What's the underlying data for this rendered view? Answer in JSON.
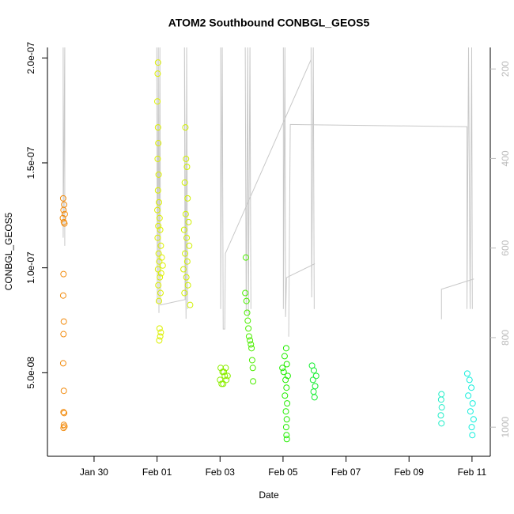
{
  "chart_data": {
    "type": "scatter",
    "title": "ATOM2 Southbound CONBGL_GEOS5",
    "xlabel": "Date",
    "ylabel": "CONBGL_GEOS5",
    "xlim": [
      28.52,
      42.58
    ],
    "xticks": [
      {
        "value": 30,
        "label": "Jan 30"
      },
      {
        "value": 32,
        "label": "Feb 01"
      },
      {
        "value": 34,
        "label": "Feb 03"
      },
      {
        "value": 36,
        "label": "Feb 05"
      },
      {
        "value": 38,
        "label": "Feb 07"
      },
      {
        "value": 40,
        "label": "Feb 09"
      },
      {
        "value": 42,
        "label": "Feb 11"
      }
    ],
    "ylim": [
      1.02e-08,
      2.05e-07
    ],
    "yticks": [
      {
        "value": 5e-08,
        "label": "5.0e-08"
      },
      {
        "value": 1e-07,
        "label": "1.0e-07"
      },
      {
        "value": 1.5e-07,
        "label": "1.5e-07"
      },
      {
        "value": 2e-07,
        "label": "2.0e-07"
      }
    ],
    "y2lim": [
      1065,
      152
    ],
    "y2ticks": [
      200,
      400,
      600,
      800,
      1000
    ],
    "y2color": "#bbbbbb",
    "series": [
      {
        "type": "scatter",
        "color": "#f28c0f",
        "x": [
          29.02,
          29.05,
          29.03,
          29.07,
          29.01,
          29.04,
          29.06,
          29.03,
          29.02,
          29.04,
          29.03,
          29.02,
          29.04,
          29.03,
          29.05,
          29.04,
          29.06,
          29.03
        ],
        "values": [
          1.331e-07,
          1.301e-07,
          1.275e-07,
          1.256e-07,
          1.237e-07,
          1.218e-07,
          1.211e-07,
          9.7e-08,
          8.68e-08,
          7.44e-08,
          6.84e-08,
          5.45e-08,
          4.14e-08,
          3.12e-08,
          3.08e-08,
          2.52e-08,
          2.44e-08,
          2.37e-08
        ]
      },
      {
        "type": "scatter",
        "color": "#dcf000",
        "x": [
          32.03,
          32.02,
          32.01,
          32.03,
          32.04,
          32.02,
          32.05,
          32.03,
          32.06,
          32.01,
          32.08,
          32.04,
          32.1,
          32.02,
          32.12,
          32.05,
          32.15,
          32.07,
          32.18,
          32.03,
          32.13,
          32.09,
          32.04,
          32.11,
          32.06,
          32.08,
          32.12,
          32.1,
          32.07
        ],
        "values": [
          1.978e-07,
          1.925e-07,
          1.793e-07,
          1.669e-07,
          1.594e-07,
          1.519e-07,
          1.444e-07,
          1.369e-07,
          1.312e-07,
          1.275e-07,
          1.237e-07,
          1.199e-07,
          1.181e-07,
          1.143e-07,
          1.105e-07,
          1.068e-07,
          1.049e-07,
          1.03e-07,
          1.011e-07,
          9.93e-08,
          9.74e-08,
          9.55e-08,
          9.17e-08,
          8.8e-08,
          8.42e-08,
          7.11e-08,
          6.92e-08,
          6.73e-08,
          6.54e-08
        ]
      },
      {
        "type": "scatter",
        "color": "#d0f000",
        "x": [
          32.9,
          32.92,
          32.95,
          32.88,
          32.97,
          32.91,
          33.0,
          32.86,
          32.94,
          33.02,
          32.89,
          32.96,
          32.84,
          32.93,
          32.98,
          32.87,
          33.05
        ],
        "values": [
          1.669e-07,
          1.519e-07,
          1.481e-07,
          1.406e-07,
          1.331e-07,
          1.256e-07,
          1.218e-07,
          1.181e-07,
          1.143e-07,
          1.105e-07,
          1.068e-07,
          1.03e-07,
          9.93e-08,
          9.55e-08,
          9.17e-08,
          8.8e-08,
          8.23e-08
        ]
      },
      {
        "type": "scatter",
        "color": "#8cee00",
        "x": [
          34.02,
          34.08,
          34.15,
          34.2,
          34.05,
          34.12,
          34.24,
          34.0,
          34.18,
          34.1
        ],
        "values": [
          5.23e-08,
          5.04e-08,
          4.85e-08,
          4.66e-08,
          4.47e-08,
          5.04e-08,
          4.85e-08,
          4.66e-08,
          5.23e-08,
          4.47e-08
        ]
      },
      {
        "type": "scatter",
        "color": "#4cee00",
        "x": [
          34.82,
          34.8,
          34.84,
          34.86,
          34.88,
          34.9,
          34.92,
          34.95,
          34.98,
          35.0,
          35.02,
          35.04,
          35.05
        ],
        "values": [
          1.049e-07,
          8.8e-08,
          8.42e-08,
          7.86e-08,
          7.48e-08,
          7.11e-08,
          6.73e-08,
          6.54e-08,
          6.35e-08,
          6.17e-08,
          5.6e-08,
          5.23e-08,
          4.59e-08
        ]
      },
      {
        "type": "scatter",
        "color": "#22ee00",
        "x": [
          36.1,
          36.05,
          36.12,
          35.98,
          36.02,
          36.15,
          36.08,
          36.11,
          36.06,
          36.13,
          36.09,
          36.12,
          36.1,
          36.11,
          36.12
        ],
        "values": [
          6.17e-08,
          5.79e-08,
          5.41e-08,
          5.23e-08,
          5.04e-08,
          4.85e-08,
          4.66e-08,
          4.29e-08,
          3.91e-08,
          3.54e-08,
          3.16e-08,
          2.78e-08,
          2.41e-08,
          2.03e-08,
          1.84e-08
        ]
      },
      {
        "type": "scatter",
        "color": "#14ee30",
        "x": [
          36.92,
          36.98,
          37.05,
          36.95,
          37.02,
          36.97,
          37.0
        ],
        "values": [
          5.34e-08,
          5.11e-08,
          4.85e-08,
          4.66e-08,
          4.36e-08,
          4.1e-08,
          3.83e-08
        ]
      },
      {
        "type": "scatter",
        "color": "#22eec8",
        "x": [
          41.03,
          41.02,
          41.04,
          41.01,
          41.03
        ],
        "values": [
          3.98e-08,
          3.72e-08,
          3.35e-08,
          2.97e-08,
          2.59e-08
        ]
      },
      {
        "type": "scatter",
        "color": "#14eedc",
        "x": [
          41.85,
          41.92,
          41.98,
          41.88,
          42.02,
          41.95,
          42.05,
          41.99,
          42.01
        ],
        "values": [
          4.96e-08,
          4.66e-08,
          4.29e-08,
          3.91e-08,
          3.54e-08,
          3.16e-08,
          2.78e-08,
          2.41e-08,
          2.03e-08
        ]
      },
      {
        "type": "line",
        "axis": "y2",
        "color": "#c8c8c8",
        "x": [
          29.02,
          29.02,
          29.07,
          29.07,
          null,
          31.99,
          32.01,
          32.04,
          32.06,
          32.09,
          32.11,
          32.89,
          32.87,
          32.92,
          32.94,
          32.97,
          null,
          34.02,
          34.02,
          34.07,
          34.1,
          34.15,
          34.17,
          36.89,
          36.89,
          36.91,
          36.96,
          36.99,
          null,
          34.8,
          34.83,
          34.88,
          34.9,
          34.95,
          34.98,
          null,
          36.01,
          36.01,
          36.06,
          36.08,
          36.11,
          37.01,
          null,
          36.18,
          36.23,
          41.84,
          41.84,
          41.89,
          41.94,
          41.99,
          42.01,
          null,
          41.03,
          41.03,
          42.06
        ],
        "values": [
          150,
          577,
          150,
          595,
          null,
          150,
          724,
          150,
          745,
          150,
          727,
          715,
          150,
          758,
          150,
          736,
          null,
          150,
          736,
          150,
          781,
          781,
          612,
          179,
          150,
          710,
          150,
          736,
          null,
          150,
          745,
          150,
          754,
          150,
          736,
          null,
          150,
          736,
          150,
          754,
          666,
          635,
          null,
          798,
          324,
          329,
          736,
          150,
          736,
          150,
          736,
          null,
          759,
          692,
          669
        ]
      }
    ]
  }
}
